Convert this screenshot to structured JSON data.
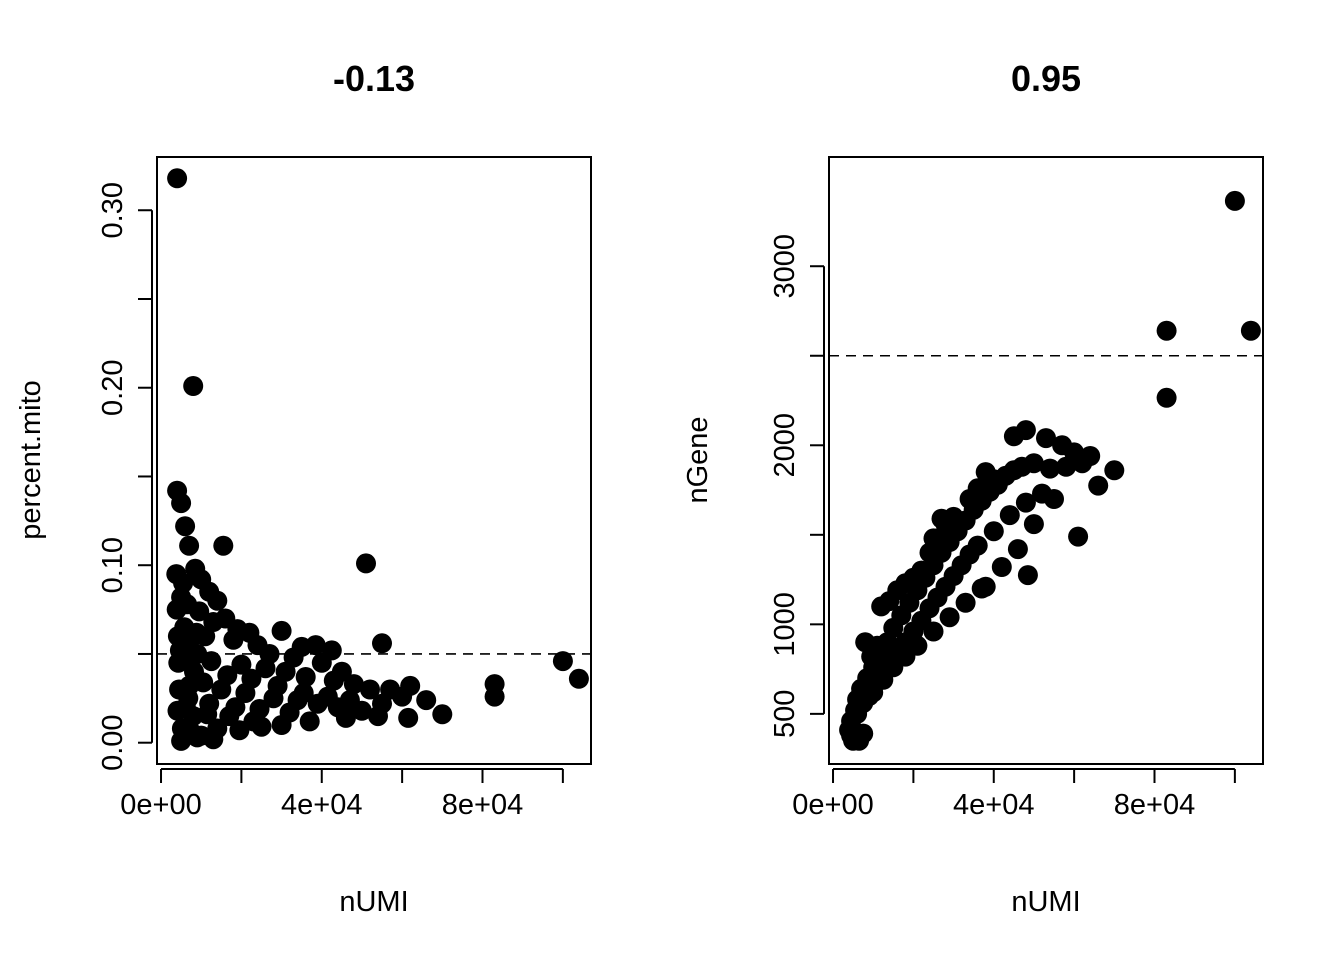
{
  "chart_data": [
    {
      "type": "scatter",
      "title": "-0.13",
      "xlabel": "nUMI",
      "ylabel": "percent.mito",
      "xlim": [
        -1000,
        107000
      ],
      "ylim": [
        -0.012,
        0.33
      ],
      "x_ticks": [
        0,
        20000,
        40000,
        60000,
        80000,
        100000
      ],
      "x_tick_labels": [
        "0e+00",
        "",
        "4e+04",
        "",
        "8e+04",
        ""
      ],
      "y_ticks": [
        0.0,
        0.05,
        0.1,
        0.15,
        0.2,
        0.25,
        0.3
      ],
      "y_tick_labels": [
        "0.00",
        "",
        "0.10",
        "",
        "0.20",
        "",
        "0.30"
      ],
      "hline": 0.05,
      "points": [
        [
          4000,
          0.318
        ],
        [
          8000,
          0.201
        ],
        [
          4000,
          0.142
        ],
        [
          5000,
          0.135
        ],
        [
          6000,
          0.122
        ],
        [
          7000,
          0.111
        ],
        [
          15500,
          0.111
        ],
        [
          51000,
          0.101
        ],
        [
          3800,
          0.095
        ],
        [
          5500,
          0.09
        ],
        [
          8500,
          0.098
        ],
        [
          10000,
          0.092
        ],
        [
          12000,
          0.085
        ],
        [
          14000,
          0.08
        ],
        [
          5000,
          0.082
        ],
        [
          3900,
          0.075
        ],
        [
          6500,
          0.078
        ],
        [
          9500,
          0.074
        ],
        [
          13000,
          0.068
        ],
        [
          16000,
          0.07
        ],
        [
          19000,
          0.064
        ],
        [
          22000,
          0.062
        ],
        [
          30000,
          0.063
        ],
        [
          38500,
          0.055
        ],
        [
          55000,
          0.056
        ],
        [
          35000,
          0.054
        ],
        [
          42500,
          0.052
        ],
        [
          4200,
          0.06
        ],
        [
          5800,
          0.065
        ],
        [
          7200,
          0.058
        ],
        [
          8800,
          0.062
        ],
        [
          11000,
          0.06
        ],
        [
          18000,
          0.058
        ],
        [
          24000,
          0.055
        ],
        [
          27000,
          0.05
        ],
        [
          33000,
          0.048
        ],
        [
          40000,
          0.045
        ],
        [
          45000,
          0.04
        ],
        [
          4300,
          0.045
        ],
        [
          6000,
          0.048
        ],
        [
          9000,
          0.05
        ],
        [
          12500,
          0.046
        ],
        [
          20000,
          0.044
        ],
        [
          26000,
          0.042
        ],
        [
          31000,
          0.04
        ],
        [
          36000,
          0.037
        ],
        [
          43000,
          0.035
        ],
        [
          48000,
          0.033
        ],
        [
          52000,
          0.03
        ],
        [
          57000,
          0.03
        ],
        [
          62000,
          0.032
        ],
        [
          66000,
          0.024
        ],
        [
          60000,
          0.026
        ],
        [
          55000,
          0.022
        ],
        [
          54000,
          0.015
        ],
        [
          61500,
          0.014
        ],
        [
          70000,
          0.016
        ],
        [
          83000,
          0.033
        ],
        [
          83000,
          0.026
        ],
        [
          100000,
          0.046
        ],
        [
          104000,
          0.036
        ],
        [
          4500,
          0.03
        ],
        [
          7000,
          0.032
        ],
        [
          10500,
          0.034
        ],
        [
          15000,
          0.03
        ],
        [
          21000,
          0.028
        ],
        [
          28000,
          0.025
        ],
        [
          34000,
          0.024
        ],
        [
          39000,
          0.022
        ],
        [
          44000,
          0.02
        ],
        [
          50000,
          0.018
        ],
        [
          4100,
          0.018
        ],
        [
          6200,
          0.02
        ],
        [
          8000,
          0.015
        ],
        [
          11500,
          0.016
        ],
        [
          17000,
          0.015
        ],
        [
          23000,
          0.012
        ],
        [
          30000,
          0.01
        ],
        [
          37000,
          0.012
        ],
        [
          46000,
          0.014
        ],
        [
          5200,
          0.008
        ],
        [
          7500,
          0.006
        ],
        [
          10000,
          0.004
        ],
        [
          14000,
          0.008
        ],
        [
          19500,
          0.007
        ],
        [
          25000,
          0.009
        ],
        [
          5000,
          0.001
        ],
        [
          9000,
          0.003
        ],
        [
          13000,
          0.002
        ],
        [
          4700,
          0.052
        ],
        [
          8200,
          0.04
        ],
        [
          16500,
          0.038
        ],
        [
          22500,
          0.036
        ],
        [
          29000,
          0.032
        ],
        [
          35500,
          0.028
        ],
        [
          41500,
          0.026
        ],
        [
          47000,
          0.024
        ],
        [
          6800,
          0.025
        ],
        [
          12000,
          0.022
        ],
        [
          18500,
          0.02
        ],
        [
          24500,
          0.019
        ],
        [
          32000,
          0.017
        ]
      ]
    },
    {
      "type": "scatter",
      "title": "0.95",
      "xlabel": "nUMI",
      "ylabel": "nGene",
      "xlim": [
        -1000,
        107000
      ],
      "ylim": [
        220,
        3610
      ],
      "x_ticks": [
        0,
        20000,
        40000,
        60000,
        80000,
        100000
      ],
      "x_tick_labels": [
        "0e+00",
        "",
        "4e+04",
        "",
        "8e+04",
        ""
      ],
      "y_ticks": [
        500,
        1000,
        1500,
        2000,
        2500,
        3000
      ],
      "y_tick_labels": [
        "500",
        "1000",
        "",
        "2000",
        "",
        "3000"
      ],
      "hline": 2500,
      "points": [
        [
          100000,
          3365
        ],
        [
          83000,
          2640
        ],
        [
          104000,
          2640
        ],
        [
          83000,
          2265
        ],
        [
          70000,
          1860
        ],
        [
          66000,
          1775
        ],
        [
          61000,
          1490
        ],
        [
          48500,
          1275
        ],
        [
          53000,
          2040
        ],
        [
          48000,
          2085
        ],
        [
          45000,
          2050
        ],
        [
          57000,
          2000
        ],
        [
          60000,
          1960
        ],
        [
          64000,
          1940
        ],
        [
          38000,
          1850
        ],
        [
          36000,
          1760
        ],
        [
          27000,
          1590
        ],
        [
          25000,
          1480
        ],
        [
          38000,
          1210
        ],
        [
          4000,
          410
        ],
        [
          4500,
          380
        ],
        [
          5000,
          350
        ],
        [
          6500,
          350
        ],
        [
          7500,
          390
        ],
        [
          4500,
          460
        ],
        [
          5500,
          520
        ],
        [
          6000,
          580
        ],
        [
          7000,
          640
        ],
        [
          8500,
          700
        ],
        [
          10000,
          760
        ],
        [
          12000,
          820
        ],
        [
          13500,
          900
        ],
        [
          15000,
          980
        ],
        [
          17000,
          1050
        ],
        [
          19000,
          1120
        ],
        [
          21000,
          1190
        ],
        [
          23000,
          1260
        ],
        [
          25000,
          1330
        ],
        [
          27000,
          1400
        ],
        [
          29000,
          1460
        ],
        [
          31000,
          1520
        ],
        [
          33000,
          1580
        ],
        [
          35000,
          1640
        ],
        [
          37000,
          1690
        ],
        [
          39000,
          1740
        ],
        [
          41000,
          1780
        ],
        [
          43000,
          1830
        ],
        [
          45000,
          1860
        ],
        [
          47000,
          1880
        ],
        [
          50000,
          1900
        ],
        [
          54000,
          1870
        ],
        [
          58000,
          1880
        ],
        [
          62000,
          1900
        ],
        [
          9000,
          600
        ],
        [
          11000,
          680
        ],
        [
          13000,
          740
        ],
        [
          16000,
          830
        ],
        [
          18000,
          900
        ],
        [
          20000,
          960
        ],
        [
          22000,
          1020
        ],
        [
          24000,
          1090
        ],
        [
          26000,
          1150
        ],
        [
          28000,
          1210
        ],
        [
          30000,
          1270
        ],
        [
          32000,
          1330
        ],
        [
          34000,
          1390
        ],
        [
          36000,
          1440
        ],
        [
          40000,
          1520
        ],
        [
          44000,
          1610
        ],
        [
          48000,
          1680
        ],
        [
          52000,
          1730
        ],
        [
          12000,
          1100
        ],
        [
          14000,
          1130
        ],
        [
          16000,
          1190
        ],
        [
          18000,
          1230
        ],
        [
          20000,
          1260
        ],
        [
          22000,
          1300
        ],
        [
          24000,
          1400
        ],
        [
          26000,
          1480
        ],
        [
          28000,
          1560
        ],
        [
          30000,
          1600
        ],
        [
          34000,
          1700
        ],
        [
          40000,
          1810
        ],
        [
          8000,
          900
        ],
        [
          9500,
          820
        ],
        [
          11000,
          880
        ],
        [
          6000,
          500
        ],
        [
          7500,
          560
        ],
        [
          10000,
          620
        ],
        [
          12500,
          690
        ],
        [
          15000,
          760
        ],
        [
          18000,
          820
        ],
        [
          21000,
          880
        ],
        [
          25000,
          960
        ],
        [
          29000,
          1040
        ],
        [
          33000,
          1120
        ],
        [
          37000,
          1200
        ],
        [
          42000,
          1320
        ],
        [
          46000,
          1420
        ],
        [
          50000,
          1560
        ],
        [
          55000,
          1700
        ]
      ]
    }
  ]
}
